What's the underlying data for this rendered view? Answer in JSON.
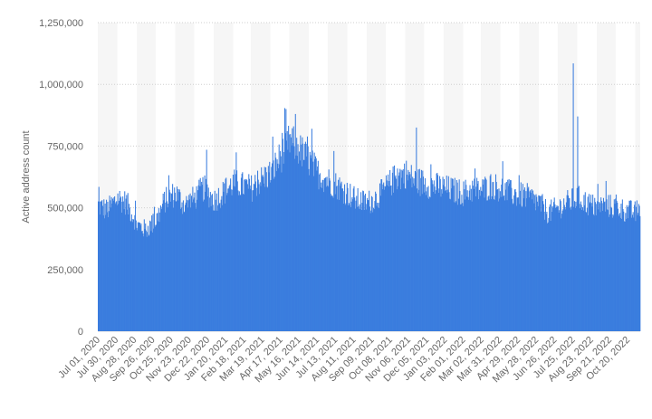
{
  "chart_data": {
    "type": "bar",
    "title": "",
    "ylabel": "Active address count",
    "xlabel": "",
    "ylim": [
      0,
      1250000
    ],
    "y_ticks": [
      "0",
      "250,000",
      "500,000",
      "750,000",
      "1,000,000",
      "1,250,000"
    ],
    "y_tick_values": [
      0,
      250000,
      500000,
      750000,
      1000000,
      1250000
    ],
    "grid": true,
    "legend": "none",
    "bar_color": "#3a7dde",
    "band_color": "#f6f6f6",
    "x_tick_labels": [
      "Jul 01, 2020",
      "Jul 30, 2020",
      "Aug 28, 2020",
      "Sep 26, 2020",
      "Oct 25, 2020",
      "Nov 23, 2020",
      "Dec 22, 2020",
      "Jan 20, 2021",
      "Feb 18, 2021",
      "Mar 19, 2021",
      "Apr 17, 2021",
      "May 16, 2021",
      "Jun 14, 2021",
      "Jul 13, 2021",
      "Aug 11, 2021",
      "Sep 09, 2021",
      "Oct 08, 2021",
      "Nov 06, 2021",
      "Dec 05, 2021",
      "Jan 03, 2022",
      "Feb 01, 2022",
      "Mar 02, 2022",
      "Mar 31, 2022",
      "Apr 29, 2022",
      "May 28, 2022",
      "Jun 26, 2022",
      "Jul 25, 2022",
      "Aug 23, 2022",
      "Sep 21, 2022",
      "Oct 20, 2022"
    ],
    "x_range": [
      "Jul 01, 2020",
      "Nov 08, 2022"
    ],
    "series": [
      {
        "resolution": "semi-monthly",
        "x": [
          "Jul 01, 2020",
          "Jul 15, 2020",
          "Aug 01, 2020",
          "Aug 15, 2020",
          "Sep 01, 2020",
          "Sep 15, 2020",
          "Oct 01, 2020",
          "Oct 15, 2020",
          "Nov 01, 2020",
          "Nov 15, 2020",
          "Dec 01, 2020",
          "Dec 15, 2020",
          "Jan 01, 2021",
          "Jan 15, 2021",
          "Feb 01, 2021",
          "Feb 15, 2021",
          "Mar 01, 2021",
          "Mar 15, 2021",
          "Apr 01, 2021",
          "Apr 15, 2021",
          "May 01, 2021",
          "May 15, 2021",
          "Jun 01, 2021",
          "Jun 15, 2021",
          "Jul 01, 2021",
          "Jul 15, 2021",
          "Aug 01, 2021",
          "Aug 15, 2021",
          "Sep 01, 2021",
          "Sep 15, 2021",
          "Oct 01, 2021",
          "Oct 15, 2021",
          "Nov 01, 2021",
          "Nov 15, 2021",
          "Dec 01, 2021",
          "Dec 15, 2021",
          "Jan 01, 2022",
          "Jan 15, 2022",
          "Feb 01, 2022",
          "Feb 15, 2022",
          "Mar 01, 2022",
          "Mar 15, 2022",
          "Apr 01, 2022",
          "Apr 15, 2022",
          "May 01, 2022",
          "May 15, 2022",
          "Jun 01, 2022",
          "Jun 15, 2022",
          "Jul 01, 2022",
          "Jul 15, 2022",
          "Aug 01, 2022",
          "Aug 15, 2022",
          "Sep 01, 2022",
          "Sep 15, 2022",
          "Oct 01, 2022",
          "Oct 15, 2022",
          "Nov 01, 2022",
          "Nov 08, 2022"
        ],
        "values": [
          510000,
          490000,
          540000,
          520000,
          430000,
          410000,
          450000,
          530000,
          560000,
          510000,
          540000,
          580000,
          530000,
          560000,
          600000,
          590000,
          580000,
          610000,
          640000,
          700000,
          770000,
          740000,
          690000,
          640000,
          610000,
          590000,
          560000,
          530000,
          520000,
          540000,
          580000,
          620000,
          640000,
          610000,
          600000,
          590000,
          580000,
          570000,
          560000,
          575000,
          570000,
          590000,
          580000,
          560000,
          550000,
          545000,
          520000,
          480000,
          500000,
          520000,
          540000,
          520000,
          500000,
          510000,
          500000,
          490000,
          480000,
          505000
        ]
      }
    ],
    "spikes": [
      {
        "x": "Jul 25, 2022",
        "value": 1085000
      },
      {
        "x": "Aug 01, 2022",
        "value": 870000
      },
      {
        "x": "Nov 18, 2021",
        "value": 825000
      },
      {
        "x": "Apr 25, 2021",
        "value": 900000
      },
      {
        "x": "May 10, 2021",
        "value": 880000
      },
      {
        "x": "Jun 05, 2021",
        "value": 820000
      },
      {
        "x": "Dec 20, 2020",
        "value": 735000
      },
      {
        "x": "Jul 10, 2021",
        "value": 730000
      }
    ]
  }
}
